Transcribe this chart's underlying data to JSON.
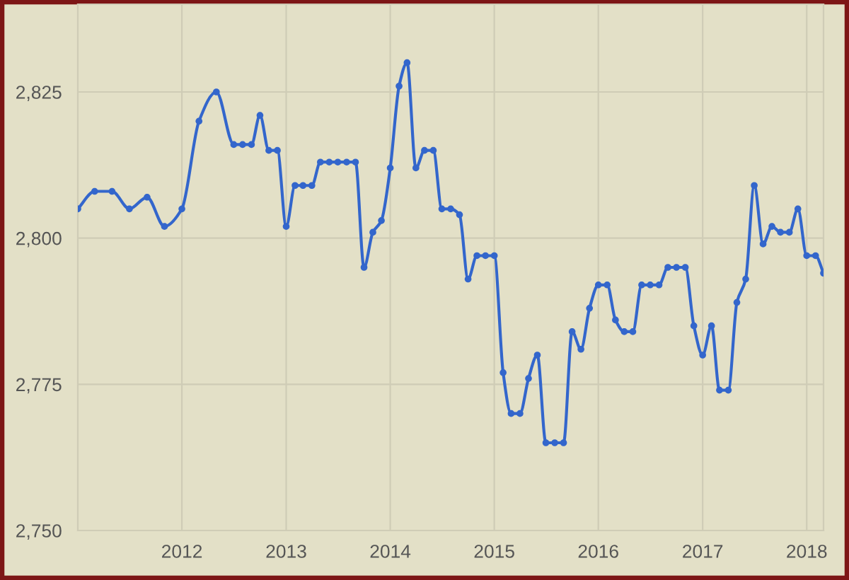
{
  "chart_data": {
    "type": "line",
    "marker": "circle",
    "grid": true,
    "x": [
      "2011-01",
      "2011-03",
      "2011-05",
      "2011-07",
      "2011-09",
      "2011-11",
      "2012-01",
      "2012-03",
      "2012-05",
      "2012-07",
      "2012-08",
      "2012-09",
      "2012-10",
      "2012-11",
      "2012-12",
      "2013-01",
      "2013-02",
      "2013-03",
      "2013-04",
      "2013-05",
      "2013-06",
      "2013-07",
      "2013-08",
      "2013-09",
      "2013-10",
      "2013-11",
      "2013-12",
      "2014-01",
      "2014-02",
      "2014-03",
      "2014-04",
      "2014-05",
      "2014-06",
      "2014-07",
      "2014-08",
      "2014-09",
      "2014-10",
      "2014-11",
      "2014-12",
      "2015-01",
      "2015-02",
      "2015-03",
      "2015-04",
      "2015-05",
      "2015-06",
      "2015-07",
      "2015-08",
      "2015-09",
      "2015-10",
      "2015-11",
      "2015-12",
      "2016-01",
      "2016-02",
      "2016-03",
      "2016-04",
      "2016-05",
      "2016-06",
      "2016-07",
      "2016-08",
      "2016-09",
      "2016-10",
      "2016-11",
      "2016-12",
      "2017-01",
      "2017-02",
      "2017-03",
      "2017-04",
      "2017-05",
      "2017-06",
      "2017-07",
      "2017-08",
      "2017-09",
      "2017-10",
      "2017-11",
      "2017-12",
      "2018-01",
      "2018-02",
      "2018-03"
    ],
    "series": [
      {
        "color": "#3366cc",
        "values": [
          2805,
          2808,
          2808,
          2805,
          2807,
          2802,
          2805,
          2820,
          2825,
          2816,
          2816,
          2816,
          2821,
          2815,
          2815,
          2802,
          2809,
          2809,
          2809,
          2813,
          2813,
          2813,
          2813,
          2813,
          2795,
          2801,
          2803,
          2812,
          2826,
          2830,
          2812,
          2815,
          2815,
          2805,
          2805,
          2804,
          2793,
          2797,
          2797,
          2797,
          2777,
          2770,
          2770,
          2776,
          2780,
          2765,
          2765,
          2765,
          2784,
          2781,
          2788,
          2792,
          2792,
          2786,
          2784,
          2784,
          2792,
          2792,
          2792,
          2795,
          2795,
          2795,
          2785,
          2780,
          2785,
          2774,
          2774,
          2789,
          2793,
          2809,
          2799,
          2802,
          2801,
          2801,
          2805,
          2797,
          2797,
          2794
        ]
      }
    ],
    "xlim": [
      "2011-01",
      "2018-03"
    ],
    "xticks": [
      "2012",
      "2013",
      "2014",
      "2015",
      "2016",
      "2017",
      "2018"
    ],
    "ylim": [
      2750,
      2840
    ],
    "yticks": [
      {
        "value": 2750,
        "label": "2,750"
      },
      {
        "value": 2775,
        "label": "2,775"
      },
      {
        "value": 2800,
        "label": "2,800"
      },
      {
        "value": 2825,
        "label": "2,825"
      }
    ]
  }
}
